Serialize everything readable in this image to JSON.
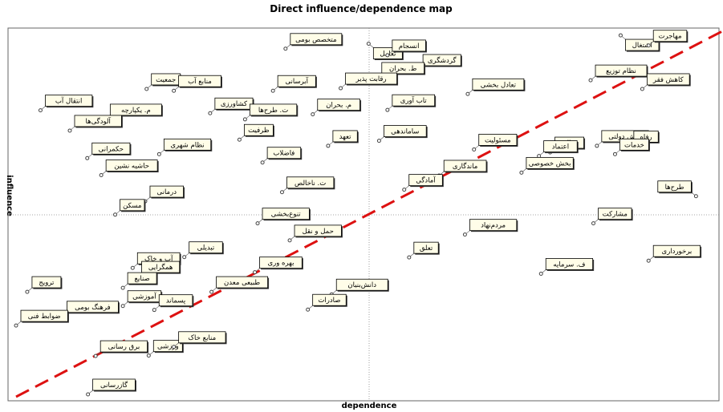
{
  "chart_data": {
    "type": "scatter",
    "title": "Direct influence/dependence map",
    "xlabel": "dependence",
    "ylabel": "influence",
    "grid": false,
    "reference_lines": [
      "median-cross-dotted",
      "diagonal-dashed-red"
    ],
    "diagonal_color": "#dd1111",
    "xlim": [
      0,
      100
    ],
    "ylim": [
      0,
      100
    ],
    "points": [
      {
        "label": "متخصص بومی",
        "x": 38.6,
        "y": 95.4
      },
      {
        "label": "تعامل",
        "x": 50.5,
        "y": 96.8
      },
      {
        "label": "انسجام",
        "x": 53.2,
        "y": 93.6
      },
      {
        "label": "گردشگری",
        "x": 57.6,
        "y": 89.6
      },
      {
        "label": "ط. بحران",
        "x": 51.7,
        "y": 87.4
      },
      {
        "label": "اشتغال",
        "x": 86.6,
        "y": 99.1
      },
      {
        "label": "مهاجرت",
        "x": 90.6,
        "y": 96.3
      },
      {
        "label": "نظام توزیع",
        "x": 82.3,
        "y": 86.7
      },
      {
        "label": "کاهش فقر",
        "x": 89.7,
        "y": 84.3
      },
      {
        "label": "جمعیت",
        "x": 18.7,
        "y": 84.3
      },
      {
        "label": "منابع آب",
        "x": 22.6,
        "y": 83.8
      },
      {
        "label": "آبرسانی",
        "x": 36.8,
        "y": 83.8
      },
      {
        "label": "رقابت پذیر",
        "x": 46.5,
        "y": 84.5
      },
      {
        "label": "تعادل بخشی",
        "x": 64.7,
        "y": 82.9
      },
      {
        "label": "تاب آوری",
        "x": 53.2,
        "y": 78.5
      },
      {
        "label": "انتقال آب",
        "x": 3.5,
        "y": 78.4
      },
      {
        "label": "کشاورزی",
        "x": 27.8,
        "y": 77.6
      },
      {
        "label": "ت. طرح‌ها",
        "x": 32.8,
        "y": 75.9
      },
      {
        "label": "م. بحران",
        "x": 42.5,
        "y": 77.3
      },
      {
        "label": "م. یکپارچه",
        "x": 12.8,
        "y": 75.9
      },
      {
        "label": "آلودگی‌ها",
        "x": 7.7,
        "y": 72.8
      },
      {
        "label": "ظرفیت",
        "x": 32.0,
        "y": 70.3
      },
      {
        "label": "ساماندهی",
        "x": 52.0,
        "y": 70.0
      },
      {
        "label": "تعهد",
        "x": 44.7,
        "y": 68.6
      },
      {
        "label": "پخش دولتی",
        "x": 83.2,
        "y": 68.6
      },
      {
        "label": "رفاه",
        "x": 87.8,
        "y": 68.5
      },
      {
        "label": "مسئولیت",
        "x": 65.6,
        "y": 67.6
      },
      {
        "label": "عدالت",
        "x": 76.5,
        "y": 66.8
      },
      {
        "label": "خدمات",
        "x": 85.8,
        "y": 66.3
      },
      {
        "label": "اعتماد",
        "x": 74.9,
        "y": 65.8
      },
      {
        "label": "حکمرانی",
        "x": 10.2,
        "y": 65.2
      },
      {
        "label": "نظام شهری",
        "x": 20.5,
        "y": 66.3
      },
      {
        "label": "فاضلاب",
        "x": 35.3,
        "y": 64.0
      },
      {
        "label": "بخش خصوصی",
        "x": 72.4,
        "y": 61.2
      },
      {
        "label": "ماندگاری",
        "x": 60.6,
        "y": 60.4
      },
      {
        "label": "آمادگی",
        "x": 55.6,
        "y": 56.5
      },
      {
        "label": "حاشیه نشین",
        "x": 12.2,
        "y": 60.5
      },
      {
        "label": "طرح‌ها",
        "x": 97.4,
        "y": 54.7
      },
      {
        "label": "ت. ناخالص",
        "x": 38.1,
        "y": 55.8
      },
      {
        "label": "درمانی",
        "x": 18.5,
        "y": 53.3
      },
      {
        "label": "مسکن",
        "x": 14.2,
        "y": 49.6
      },
      {
        "label": "تنوع‌بخشی",
        "x": 34.6,
        "y": 47.2
      },
      {
        "label": "مشارکت",
        "x": 82.7,
        "y": 47.2
      },
      {
        "label": "مردم‌نهاد",
        "x": 64.3,
        "y": 44.1
      },
      {
        "label": "حمل و نقل",
        "x": 39.2,
        "y": 42.5
      },
      {
        "label": "تعلق",
        "x": 56.3,
        "y": 37.8
      },
      {
        "label": "برخورداری",
        "x": 90.6,
        "y": 36.9
      },
      {
        "label": "تبدیلی",
        "x": 24.1,
        "y": 37.9
      },
      {
        "label": "آب و خاک",
        "x": 16.7,
        "y": 34.9
      },
      {
        "label": "بهره وری",
        "x": 34.2,
        "y": 33.7
      },
      {
        "label": "ف. سرمایه",
        "x": 75.2,
        "y": 33.3
      },
      {
        "label": "همگرایی",
        "x": 17.3,
        "y": 32.5
      },
      {
        "label": "صنایع",
        "x": 15.3,
        "y": 29.4
      },
      {
        "label": "طبیعی معدن",
        "x": 28.0,
        "y": 28.3
      },
      {
        "label": "دانش‌بنیان",
        "x": 45.2,
        "y": 27.6
      },
      {
        "label": "ترویج",
        "x": 1.6,
        "y": 28.3
      },
      {
        "label": "صادرات",
        "x": 41.8,
        "y": 23.4
      },
      {
        "label": "فرهنگ بومی",
        "x": 6.6,
        "y": 21.5
      },
      {
        "label": "آموزشی",
        "x": 15.3,
        "y": 24.4
      },
      {
        "label": "پسماند",
        "x": 19.8,
        "y": 23.3
      },
      {
        "label": "ضوابط فنی",
        "x": 0.0,
        "y": 19.0
      },
      {
        "label": "برق رسانی",
        "x": 11.4,
        "y": 10.6
      },
      {
        "label": "ورزشی",
        "x": 19.0,
        "y": 10.7
      },
      {
        "label": "منابع خاک",
        "x": 22.6,
        "y": 13.1
      },
      {
        "label": "گازرسانی",
        "x": 10.3,
        "y": 0.0
      }
    ]
  }
}
